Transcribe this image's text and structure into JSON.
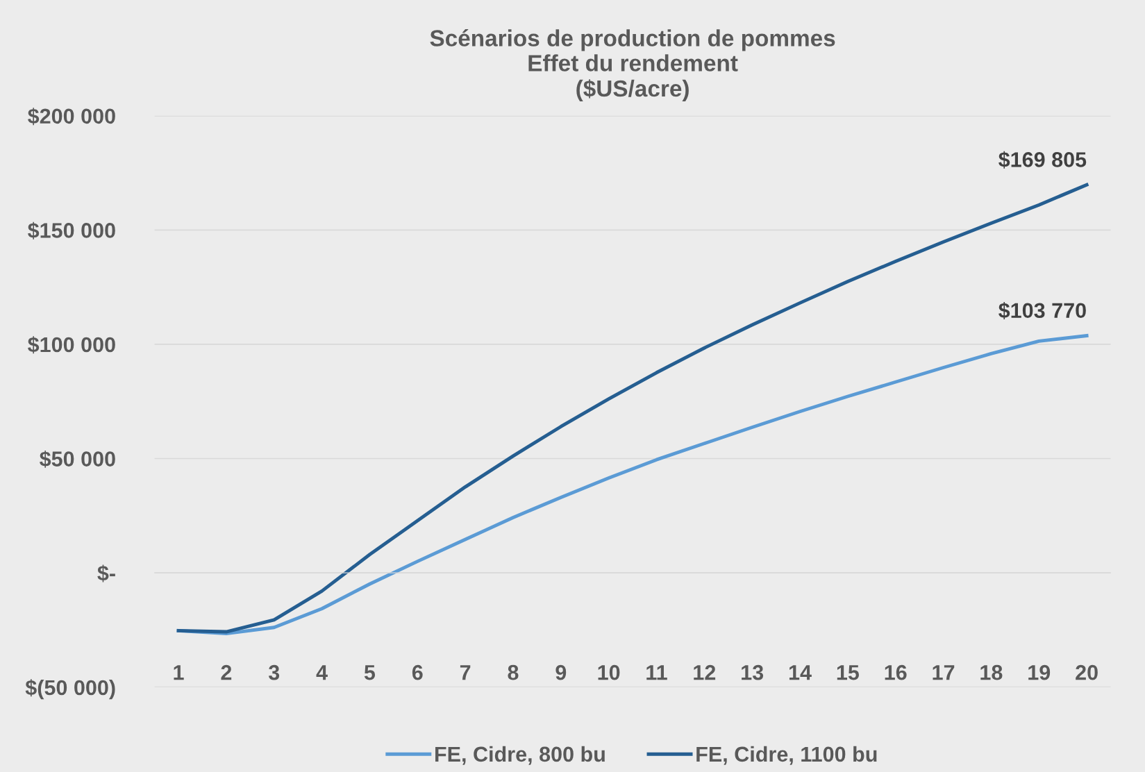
{
  "chart_data": {
    "type": "line",
    "title": "Scénarios de production de pommes\nEffet du rendement\n($US/acre)",
    "categories": [
      "1",
      "2",
      "3",
      "4",
      "5",
      "6",
      "7",
      "8",
      "9",
      "10",
      "11",
      "12",
      "13",
      "14",
      "15",
      "16",
      "17",
      "18",
      "19",
      "20"
    ],
    "series": [
      {
        "name": "FE, Cidre, 800 bu",
        "color": "#5b9bd5",
        "values": [
          -25300,
          -26600,
          -23900,
          -15700,
          -4900,
          5000,
          14600,
          24200,
          33000,
          41500,
          49500,
          56600,
          63700,
          70600,
          77200,
          83500,
          89800,
          95900,
          101400,
          103770
        ],
        "value_labels": [
          null,
          null,
          null,
          null,
          null,
          null,
          null,
          null,
          null,
          null,
          null,
          null,
          null,
          null,
          null,
          null,
          null,
          null,
          null,
          "$103 770"
        ]
      },
      {
        "name": "FE, Cidre, 1100 bu",
        "color": "#255e91",
        "values": [
          -25300,
          -25800,
          -20600,
          -8000,
          8000,
          22800,
          37600,
          51100,
          64000,
          76100,
          87600,
          98400,
          108500,
          118100,
          127500,
          136300,
          144800,
          153000,
          161000,
          169805
        ],
        "value_labels": [
          null,
          null,
          null,
          null,
          null,
          null,
          null,
          null,
          null,
          null,
          null,
          null,
          null,
          null,
          null,
          null,
          null,
          null,
          null,
          "$169 805"
        ]
      }
    ],
    "ylim": [
      -50000,
      200000
    ],
    "yticks": [
      {
        "value": -50000,
        "label": "$(50 000)"
      },
      {
        "value": 0,
        "label": "$-"
      },
      {
        "value": 50000,
        "label": "$50 000"
      },
      {
        "value": 100000,
        "label": "$100 000"
      },
      {
        "value": 150000,
        "label": "$150 000"
      },
      {
        "value": 200000,
        "label": "$200 000"
      }
    ],
    "grid": "y",
    "legend": "bottom",
    "marker": "none",
    "line_style": "solid"
  }
}
